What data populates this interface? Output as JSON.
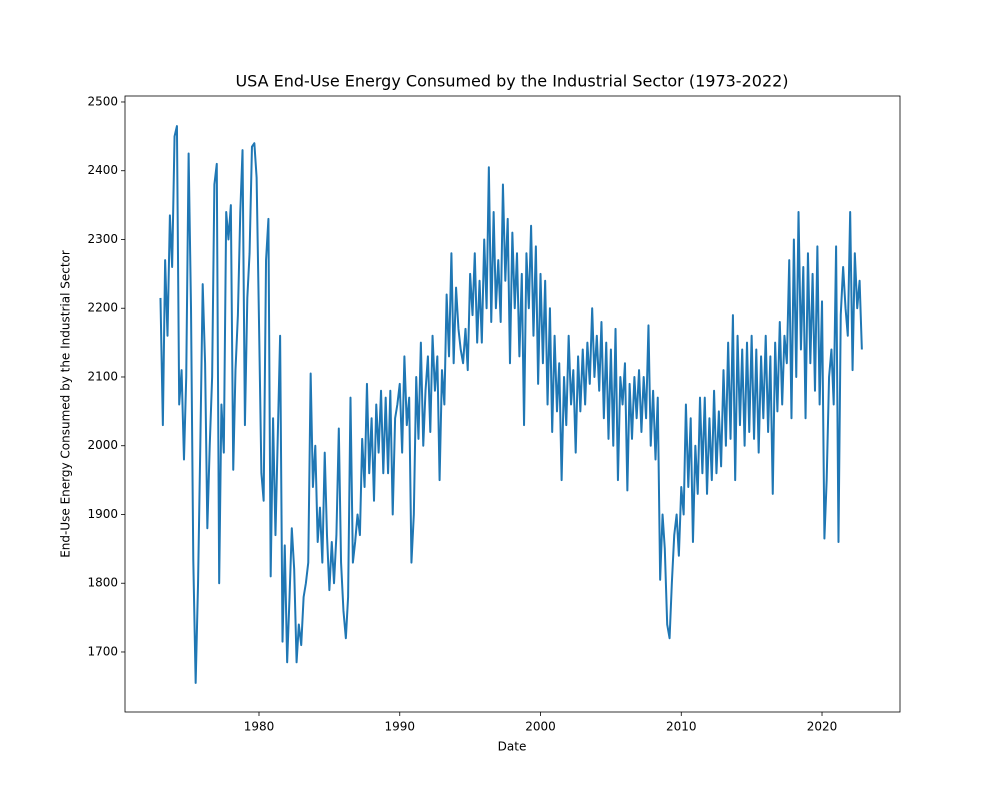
{
  "chart_data": {
    "type": "line",
    "title": "USA End-Use Energy Consumed by the Industrial Sector (1973-2022)",
    "x_label": "Date",
    "y_label": "End-Use Energy Consumed by the Industrial Sector",
    "xlim": [
      1970.48,
      2025.54
    ],
    "ylim": [
      1612.7,
      2508.7
    ],
    "xticks": [
      1980,
      1990,
      2000,
      2010,
      2020
    ],
    "yticks": [
      1700,
      1800,
      1900,
      2000,
      2100,
      2200,
      2300,
      2400,
      2500
    ],
    "grid": false,
    "x": [
      1973.0,
      1973.17,
      1973.33,
      1973.5,
      1973.67,
      1973.83,
      1974.0,
      1974.17,
      1974.33,
      1974.5,
      1974.67,
      1974.83,
      1975.0,
      1975.17,
      1975.33,
      1975.5,
      1975.67,
      1975.83,
      1976.0,
      1976.17,
      1976.33,
      1976.5,
      1976.67,
      1976.83,
      1977.0,
      1977.17,
      1977.33,
      1977.5,
      1977.67,
      1977.83,
      1978.0,
      1978.17,
      1978.33,
      1978.5,
      1978.67,
      1978.83,
      1979.0,
      1979.17,
      1979.33,
      1979.5,
      1979.67,
      1979.83,
      1980.0,
      1980.17,
      1980.33,
      1980.5,
      1980.67,
      1980.83,
      1981.0,
      1981.17,
      1981.33,
      1981.5,
      1981.67,
      1981.83,
      1982.0,
      1982.17,
      1982.33,
      1982.5,
      1982.67,
      1982.83,
      1983.0,
      1983.17,
      1983.33,
      1983.5,
      1983.67,
      1983.83,
      1984.0,
      1984.17,
      1984.33,
      1984.5,
      1984.67,
      1984.83,
      1985.0,
      1985.17,
      1985.33,
      1985.5,
      1985.67,
      1985.83,
      1986.0,
      1986.17,
      1986.33,
      1986.5,
      1986.67,
      1986.83,
      1987.0,
      1987.17,
      1987.33,
      1987.5,
      1987.67,
      1987.83,
      1988.0,
      1988.17,
      1988.33,
      1988.5,
      1988.67,
      1988.83,
      1989.0,
      1989.17,
      1989.33,
      1989.5,
      1989.67,
      1989.83,
      1990.0,
      1990.17,
      1990.33,
      1990.5,
      1990.67,
      1990.83,
      1991.0,
      1991.17,
      1991.33,
      1991.5,
      1991.67,
      1991.83,
      1992.0,
      1992.17,
      1992.33,
      1992.5,
      1992.67,
      1992.83,
      1993.0,
      1993.17,
      1993.33,
      1993.5,
      1993.67,
      1993.83,
      1994.0,
      1994.17,
      1994.33,
      1994.5,
      1994.67,
      1994.83,
      1995.0,
      1995.17,
      1995.33,
      1995.5,
      1995.67,
      1995.83,
      1996.0,
      1996.17,
      1996.33,
      1996.5,
      1996.67,
      1996.83,
      1997.0,
      1997.17,
      1997.33,
      1997.5,
      1997.67,
      1997.83,
      1998.0,
      1998.17,
      1998.33,
      1998.5,
      1998.67,
      1998.83,
      1999.0,
      1999.17,
      1999.33,
      1999.5,
      1999.67,
      1999.83,
      2000.0,
      2000.17,
      2000.33,
      2000.5,
      2000.67,
      2000.83,
      2001.0,
      2001.17,
      2001.33,
      2001.5,
      2001.67,
      2001.83,
      2002.0,
      2002.17,
      2002.33,
      2002.5,
      2002.67,
      2002.83,
      2003.0,
      2003.17,
      2003.33,
      2003.5,
      2003.67,
      2003.83,
      2004.0,
      2004.17,
      2004.33,
      2004.5,
      2004.67,
      2004.83,
      2005.0,
      2005.17,
      2005.33,
      2005.5,
      2005.67,
      2005.83,
      2006.0,
      2006.17,
      2006.33,
      2006.5,
      2006.67,
      2006.83,
      2007.0,
      2007.17,
      2007.33,
      2007.5,
      2007.67,
      2007.83,
      2008.0,
      2008.17,
      2008.33,
      2008.5,
      2008.67,
      2008.83,
      2009.0,
      2009.17,
      2009.33,
      2009.5,
      2009.67,
      2009.83,
      2010.0,
      2010.17,
      2010.33,
      2010.5,
      2010.67,
      2010.83,
      2011.0,
      2011.17,
      2011.33,
      2011.5,
      2011.67,
      2011.83,
      2012.0,
      2012.17,
      2012.33,
      2012.5,
      2012.67,
      2012.83,
      2013.0,
      2013.17,
      2013.33,
      2013.5,
      2013.67,
      2013.83,
      2014.0,
      2014.17,
      2014.33,
      2014.5,
      2014.67,
      2014.83,
      2015.0,
      2015.17,
      2015.33,
      2015.5,
      2015.67,
      2015.83,
      2016.0,
      2016.17,
      2016.33,
      2016.5,
      2016.67,
      2016.83,
      2017.0,
      2017.17,
      2017.33,
      2017.5,
      2017.67,
      2017.83,
      2018.0,
      2018.17,
      2018.33,
      2018.5,
      2018.67,
      2018.83,
      2019.0,
      2019.17,
      2019.33,
      2019.5,
      2019.67,
      2019.83,
      2020.0,
      2020.17,
      2020.33,
      2020.5,
      2020.67,
      2020.83,
      2021.0,
      2021.17,
      2021.33,
      2021.5,
      2021.67,
      2021.83,
      2022.0,
      2022.17,
      2022.33,
      2022.5,
      2022.67,
      2022.83
    ],
    "series": [
      {
        "color": "#1f77b4",
        "values": [
          2215,
          2030,
          2270,
          2160,
          2335,
          2260,
          2450,
          2465,
          2060,
          2110,
          1980,
          2100,
          2425,
          2200,
          1835,
          1655,
          1800,
          2000,
          2235,
          2120,
          1880,
          2000,
          2100,
          2380,
          2410,
          1800,
          2060,
          1990,
          2340,
          2300,
          2350,
          1965,
          2110,
          2190,
          2340,
          2430,
          2030,
          2215,
          2280,
          2435,
          2440,
          2390,
          2180,
          1960,
          1920,
          2270,
          2330,
          1810,
          2040,
          1870,
          2010,
          2160,
          1715,
          1855,
          1685,
          1780,
          1880,
          1820,
          1685,
          1740,
          1710,
          1780,
          1800,
          1830,
          2105,
          1940,
          2000,
          1860,
          1910,
          1830,
          1990,
          1870,
          1790,
          1860,
          1800,
          1870,
          2025,
          1830,
          1760,
          1720,
          1780,
          2070,
          1830,
          1860,
          1900,
          1870,
          2010,
          1940,
          2090,
          1960,
          2040,
          1920,
          2060,
          1990,
          2080,
          1960,
          2070,
          1960,
          2080,
          1900,
          2040,
          2060,
          2090,
          1990,
          2130,
          2030,
          2070,
          1830,
          1900,
          2100,
          2010,
          2150,
          2000,
          2080,
          2130,
          2020,
          2160,
          2080,
          2130,
          1950,
          2110,
          2060,
          2220,
          2130,
          2280,
          2120,
          2230,
          2170,
          2140,
          2120,
          2170,
          2110,
          2250,
          2190,
          2280,
          2150,
          2240,
          2150,
          2300,
          2200,
          2405,
          2180,
          2340,
          2200,
          2270,
          2180,
          2380,
          2240,
          2330,
          2120,
          2310,
          2200,
          2280,
          2130,
          2250,
          2030,
          2280,
          2200,
          2320,
          2160,
          2290,
          2090,
          2250,
          2120,
          2240,
          2060,
          2200,
          2020,
          2160,
          2050,
          2120,
          1950,
          2100,
          2030,
          2160,
          2060,
          2110,
          1990,
          2130,
          2050,
          2140,
          2060,
          2150,
          2090,
          2200,
          2100,
          2160,
          2080,
          2180,
          2040,
          2150,
          2010,
          2140,
          2000,
          2170,
          1950,
          2100,
          2060,
          2120,
          1935,
          2090,
          2010,
          2100,
          2040,
          2110,
          2020,
          2100,
          2040,
          2175,
          2000,
          2080,
          1980,
          2070,
          1805,
          1900,
          1850,
          1740,
          1720,
          1800,
          1870,
          1900,
          1840,
          1940,
          1900,
          2060,
          1940,
          2040,
          1860,
          2000,
          1930,
          2070,
          1960,
          2070,
          1930,
          2040,
          1950,
          2080,
          1960,
          2050,
          1970,
          2110,
          2000,
          2150,
          2010,
          2190,
          1950,
          2160,
          2030,
          2140,
          2000,
          2150,
          2020,
          2160,
          2010,
          2140,
          1990,
          2130,
          2040,
          2160,
          2020,
          2130,
          1930,
          2150,
          2050,
          2180,
          2060,
          2160,
          2120,
          2270,
          2040,
          2300,
          2100,
          2340,
          2140,
          2260,
          2040,
          2280,
          2120,
          2250,
          2080,
          2290,
          2060,
          2210,
          1865,
          1950,
          2100,
          2140,
          2060,
          2290,
          1860,
          2190,
          2260,
          2200,
          2160,
          2340,
          2110,
          2280,
          2200,
          2240,
          2140
        ]
      }
    ]
  }
}
